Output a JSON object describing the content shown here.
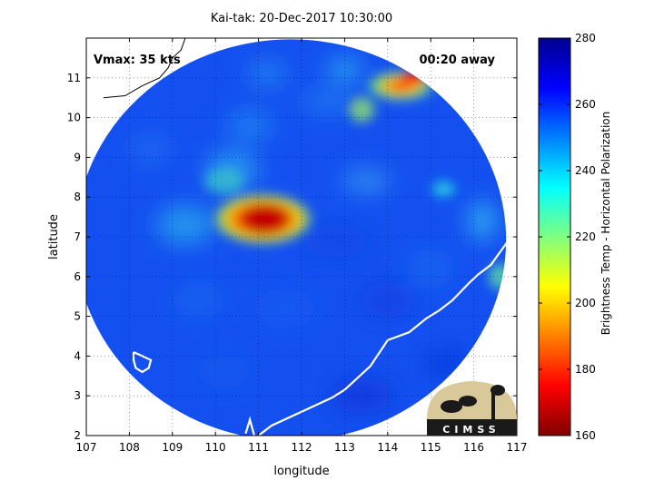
{
  "chart_data": {
    "type": "heatmap",
    "title": "Kai-tak: 20-Dec-2017 10:30:00",
    "xlabel": "longitude",
    "ylabel": "latitude",
    "xlim": [
      107,
      117
    ],
    "ylim": [
      2,
      12
    ],
    "xticks": [
      107,
      108,
      109,
      110,
      111,
      112,
      113,
      114,
      115,
      116,
      117
    ],
    "yticks": [
      2,
      3,
      4,
      5,
      6,
      7,
      8,
      9,
      10,
      11
    ],
    "annotations": {
      "vmax": "Vmax: 35 kts",
      "away": "00:20 away"
    },
    "colorbar": {
      "label": "Brightness Temp - Horizontal Polarization",
      "range": [
        160,
        280
      ],
      "ticks": [
        160,
        180,
        200,
        220,
        240,
        260,
        280
      ],
      "colormap": "jet",
      "colors": [
        "#800000",
        "#ff0000",
        "#ff8000",
        "#ffff00",
        "#80ff80",
        "#00ffff",
        "#0080ff",
        "#0000ff",
        "#00008f"
      ]
    },
    "swath": {
      "center_lon": 111.75,
      "center_lat": 6.92,
      "radius_lon": 5.0,
      "radius_lat": 5.05,
      "background_temp": 262
    },
    "features": [
      {
        "name": "eye-core",
        "lon": 111.2,
        "lat": 7.4,
        "min_temp": 168
      },
      {
        "name": "northeast-band",
        "lon": 114.2,
        "lat": 10.9,
        "min_temp": 190
      },
      {
        "name": "east-patch",
        "lon": 115.3,
        "lat": 8.2,
        "min_temp": 232
      }
    ],
    "grid": true,
    "logo_text": "CIMSS"
  }
}
